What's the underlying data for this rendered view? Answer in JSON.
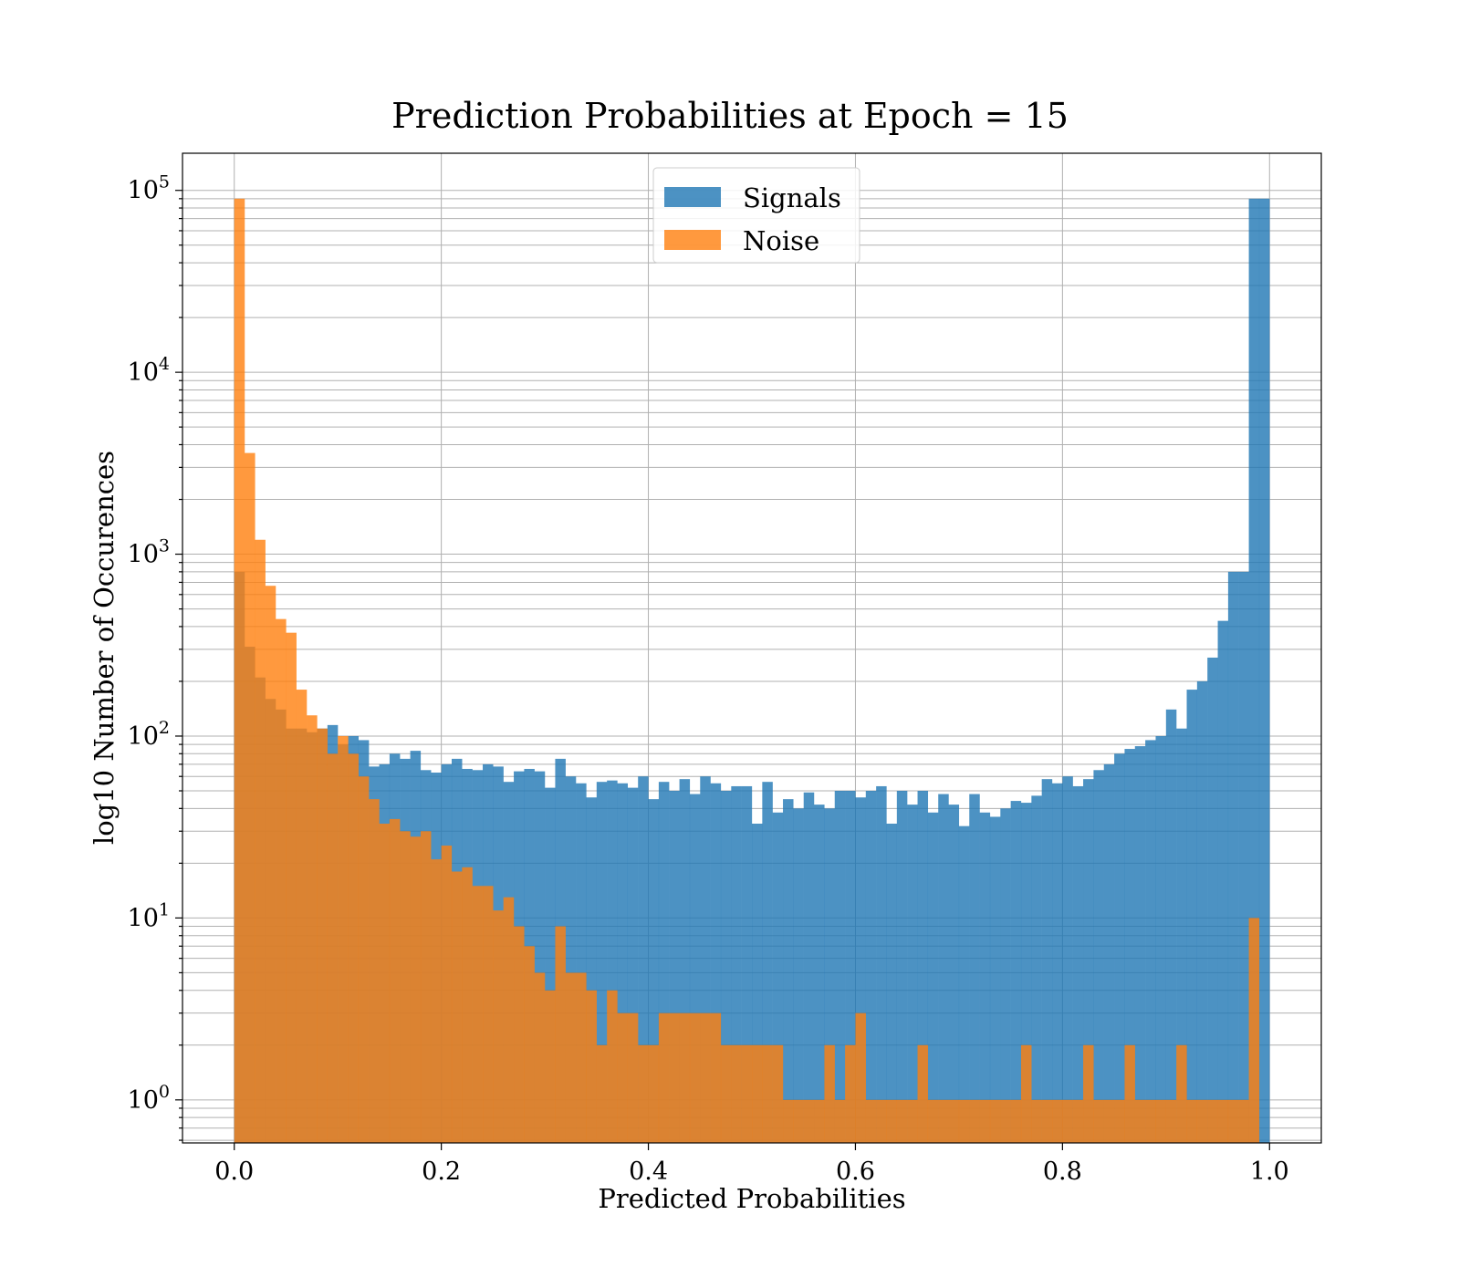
{
  "chart_data": {
    "type": "bar",
    "title": "Prediction Probabilities at Epoch = 15",
    "xlabel": "Predicted Probabilities",
    "ylabel": "log10 Number of Occurences",
    "x_scale": "linear",
    "y_scale": "log",
    "xlim": [
      -0.05,
      1.05
    ],
    "ylim": [
      0.58,
      160000
    ],
    "x_ticks": [
      0.0,
      0.2,
      0.4,
      0.6,
      0.8,
      1.0
    ],
    "x_tick_labels": [
      "0.0",
      "0.2",
      "0.4",
      "0.6",
      "0.8",
      "1.0"
    ],
    "y_ticks": [
      {
        "value": 1,
        "base": "10",
        "exp": "0"
      },
      {
        "value": 10,
        "base": "10",
        "exp": "1"
      },
      {
        "value": 100,
        "base": "10",
        "exp": "2"
      },
      {
        "value": 1000,
        "base": "10",
        "exp": "3"
      },
      {
        "value": 10000,
        "base": "10",
        "exp": "4"
      },
      {
        "value": 100000,
        "base": "10",
        "exp": "5"
      }
    ],
    "grid": true,
    "legend_position": "top-center",
    "bins": 100,
    "bin_range": [
      0,
      1
    ],
    "series": [
      {
        "name": "Signals",
        "color": "#1f77b4",
        "alpha": 0.8,
        "values": [
          800,
          310,
          210,
          160,
          140,
          110,
          110,
          105,
          110,
          115,
          90,
          100,
          95,
          68,
          70,
          80,
          75,
          83,
          65,
          63,
          70,
          75,
          66,
          65,
          70,
          68,
          56,
          64,
          66,
          64,
          52,
          75,
          60,
          55,
          46,
          56,
          57,
          55,
          52,
          60,
          45,
          56,
          50,
          58,
          48,
          60,
          55,
          50,
          53,
          53,
          33,
          56,
          38,
          45,
          40,
          49,
          42,
          40,
          50,
          50,
          46,
          50,
          53,
          33,
          50,
          42,
          50,
          38,
          48,
          42,
          32,
          48,
          38,
          36,
          40,
          44,
          43,
          47,
          58,
          55,
          60,
          53,
          58,
          65,
          70,
          80,
          85,
          88,
          95,
          100,
          140,
          110,
          180,
          200,
          270,
          430,
          800,
          800,
          90000,
          90000
        ]
      },
      {
        "name": "Noise",
        "color": "#ff7f0e",
        "alpha": 0.8,
        "values": [
          90000,
          3600,
          1200,
          670,
          440,
          370,
          180,
          130,
          110,
          80,
          100,
          80,
          60,
          45,
          33,
          35,
          30,
          28,
          30,
          21,
          25,
          18,
          19,
          15,
          15,
          11,
          13,
          9,
          7,
          5,
          4,
          9,
          5,
          5,
          4,
          2,
          4,
          3,
          3,
          2,
          2,
          3,
          3,
          3,
          3,
          3,
          3,
          2,
          2,
          2,
          2,
          2,
          2,
          1,
          1,
          1,
          1,
          2,
          1,
          2,
          3,
          1,
          1,
          1,
          1,
          1,
          2,
          1,
          1,
          1,
          1,
          1,
          1,
          1,
          1,
          1,
          2,
          1,
          1,
          1,
          1,
          1,
          2,
          1,
          1,
          1,
          2,
          1,
          1,
          1,
          1,
          2,
          1,
          1,
          1,
          1,
          1,
          1,
          10,
          0
        ]
      }
    ]
  }
}
